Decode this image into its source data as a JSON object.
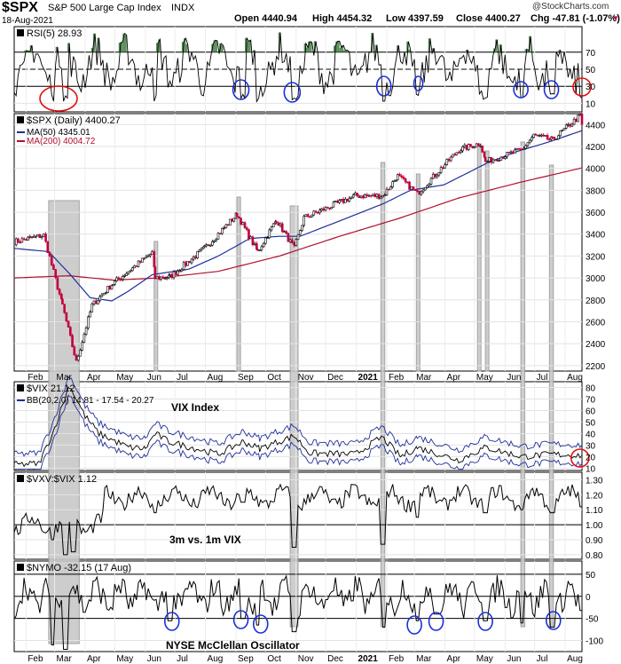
{
  "header": {
    "symbol": "$SPX",
    "name": "S&P 500 Large Cap Index",
    "exchange": "INDX",
    "date": "18-Aug-2021",
    "open": "Open 4440.94",
    "high": "High 4454.32",
    "low": "Low 4397.59",
    "close": "Close 4400.27",
    "change": "Chg -47.81 (-1.07%)",
    "watermark": "@StockCharts.com"
  },
  "colors": {
    "price_up": "#000000",
    "price_down": "#c0003c",
    "ma50": "#1f2f9a",
    "ma200": "#b0102e",
    "highlight": "#9a9a9a",
    "circle_blue": "#1a2fd6",
    "circle_red": "#e01010",
    "rsi_fill_high": "#3f7a3f",
    "rsi_fill_low": "#8a2b3b",
    "bollinger": "#1f2f9a"
  },
  "chart_data": [
    {
      "type": "line",
      "panel": "rsi",
      "title": "RSI(5) 28.93",
      "y_ticks": [
        "70",
        "50",
        "30",
        "10"
      ],
      "ylim": [
        0,
        100
      ],
      "reference_lines": [
        70,
        50,
        30
      ],
      "last_value": 28.93
    },
    {
      "type": "candlestick",
      "panel": "price",
      "title": "$SPX (Daily) 4400.27",
      "legend": [
        "MA(50) 4345.01",
        "MA(200) 4004.72"
      ],
      "y_ticks": [
        "4400",
        "4200",
        "4000",
        "3800",
        "3600",
        "3400",
        "3200",
        "3000",
        "2800",
        "2600",
        "2400",
        "2200"
      ],
      "ylim": [
        2150,
        4500
      ],
      "x_ticks": [
        "Feb",
        "Mar",
        "Apr",
        "May",
        "Jun",
        "Jul",
        "Aug",
        "Sep",
        "Oct",
        "Nov",
        "Dec",
        "2021",
        "Feb",
        "Mar",
        "Apr",
        "May",
        "Jun",
        "Jul",
        "Aug"
      ],
      "series": [
        {
          "name": "$SPX",
          "x": [
            "2020-01-20",
            "2020-02-19",
            "2020-03-09",
            "2020-03-23",
            "2020-04-08",
            "2020-04-29",
            "2020-06-08",
            "2020-06-11",
            "2020-06-26",
            "2020-07-31",
            "2020-09-02",
            "2020-09-23",
            "2020-10-12",
            "2020-10-30",
            "2020-11-09",
            "2020-12-31",
            "2021-01-28",
            "2021-02-12",
            "2021-03-04",
            "2021-04-15",
            "2021-05-07",
            "2021-05-12",
            "2021-06-18",
            "2021-06-30",
            "2021-07-19",
            "2021-08-16",
            "2021-08-18"
          ],
          "values": [
            3330,
            3390,
            2750,
            2230,
            2750,
            2950,
            3230,
            3000,
            3010,
            3270,
            3580,
            3240,
            3530,
            3270,
            3550,
            3750,
            3750,
            3930,
            3770,
            4170,
            4230,
            4060,
            4170,
            4300,
            4260,
            4480,
            4400
          ]
        },
        {
          "name": "MA(50)",
          "x": [
            "2020-01-20",
            "2020-02-24",
            "2020-03-16",
            "2020-04-06",
            "2020-04-28",
            "2020-05-15",
            "2020-06-08",
            "2020-07-15",
            "2020-08-14",
            "2020-09-15",
            "2020-10-15",
            "2020-11-05",
            "2020-12-15",
            "2021-01-29",
            "2021-02-25",
            "2021-03-31",
            "2021-05-14",
            "2021-06-15",
            "2021-07-15",
            "2021-08-18"
          ],
          "values": [
            3270,
            3240,
            3040,
            2820,
            2790,
            2880,
            3030,
            3080,
            3200,
            3360,
            3380,
            3380,
            3520,
            3680,
            3800,
            3850,
            4050,
            4160,
            4240,
            4345.01
          ]
        },
        {
          "name": "MA(200)",
          "x": [
            "2020-01-20",
            "2020-03-16",
            "2020-04-30",
            "2020-06-15",
            "2020-08-14",
            "2020-10-15",
            "2020-12-15",
            "2021-02-12",
            "2021-04-15",
            "2021-06-15",
            "2021-08-18"
          ],
          "values": [
            3000,
            3020,
            2980,
            3000,
            3060,
            3200,
            3380,
            3540,
            3730,
            3870,
            4004.72
          ]
        }
      ]
    },
    {
      "type": "line",
      "panel": "vix",
      "title": "$VIX 21.12",
      "legend": [
        "BB(20,2.0) 14.81 - 17.54 - 20.27"
      ],
      "annotation": "VIX Index",
      "y_ticks": [
        "80",
        "70",
        "60",
        "50",
        "40",
        "30",
        "20",
        "10"
      ],
      "ylim": [
        8,
        85
      ],
      "series": [
        {
          "name": "$VIX",
          "x": [
            "2020-01-20",
            "2020-02-14",
            "2020-02-28",
            "2020-03-16",
            "2020-04-01",
            "2020-04-15",
            "2020-05-15",
            "2020-06-01",
            "2020-06-11",
            "2020-06-25",
            "2020-08-14",
            "2020-09-08",
            "2020-09-25",
            "2020-10-30",
            "2020-11-15",
            "2020-12-31",
            "2021-01-27",
            "2021-02-15",
            "2021-03-04",
            "2021-04-15",
            "2021-05-12",
            "2021-06-18",
            "2021-07-19",
            "2021-08-18"
          ],
          "values": [
            13,
            14,
            40,
            82,
            55,
            40,
            28,
            27,
            40,
            33,
            22,
            33,
            27,
            38,
            23,
            22,
            37,
            20,
            28,
            17,
            28,
            20,
            22,
            21.12
          ]
        }
      ]
    },
    {
      "type": "line",
      "panel": "vxv_vix",
      "title": "$VXV:$VIX 1.12",
      "annotation": "3m vs. 1m VIX",
      "y_ticks": [
        "1.30",
        "1.20",
        "1.10",
        "1.00",
        "0.90",
        "0.80"
      ],
      "ylim": [
        0.77,
        1.35
      ],
      "reference_lines": [
        1.0
      ],
      "last_value": 1.12
    },
    {
      "type": "line",
      "panel": "nymo",
      "title": "$NYMO -32.15 (17 Aug)",
      "annotation": "NYSE McClellan Oscillator",
      "y_ticks": [
        "50",
        "0",
        "-50",
        "-100"
      ],
      "ylim": [
        -125,
        80
      ],
      "reference_lines": [
        50,
        0,
        -50
      ],
      "last_value": -32.15,
      "x_ticks": [
        "Feb",
        "Mar",
        "Apr",
        "May",
        "Jun",
        "Jul",
        "Aug",
        "Sep",
        "Oct",
        "Nov",
        "Dec",
        "2021",
        "Feb",
        "Mar",
        "Apr",
        "May",
        "Jun",
        "Jul",
        "Aug"
      ]
    }
  ]
}
